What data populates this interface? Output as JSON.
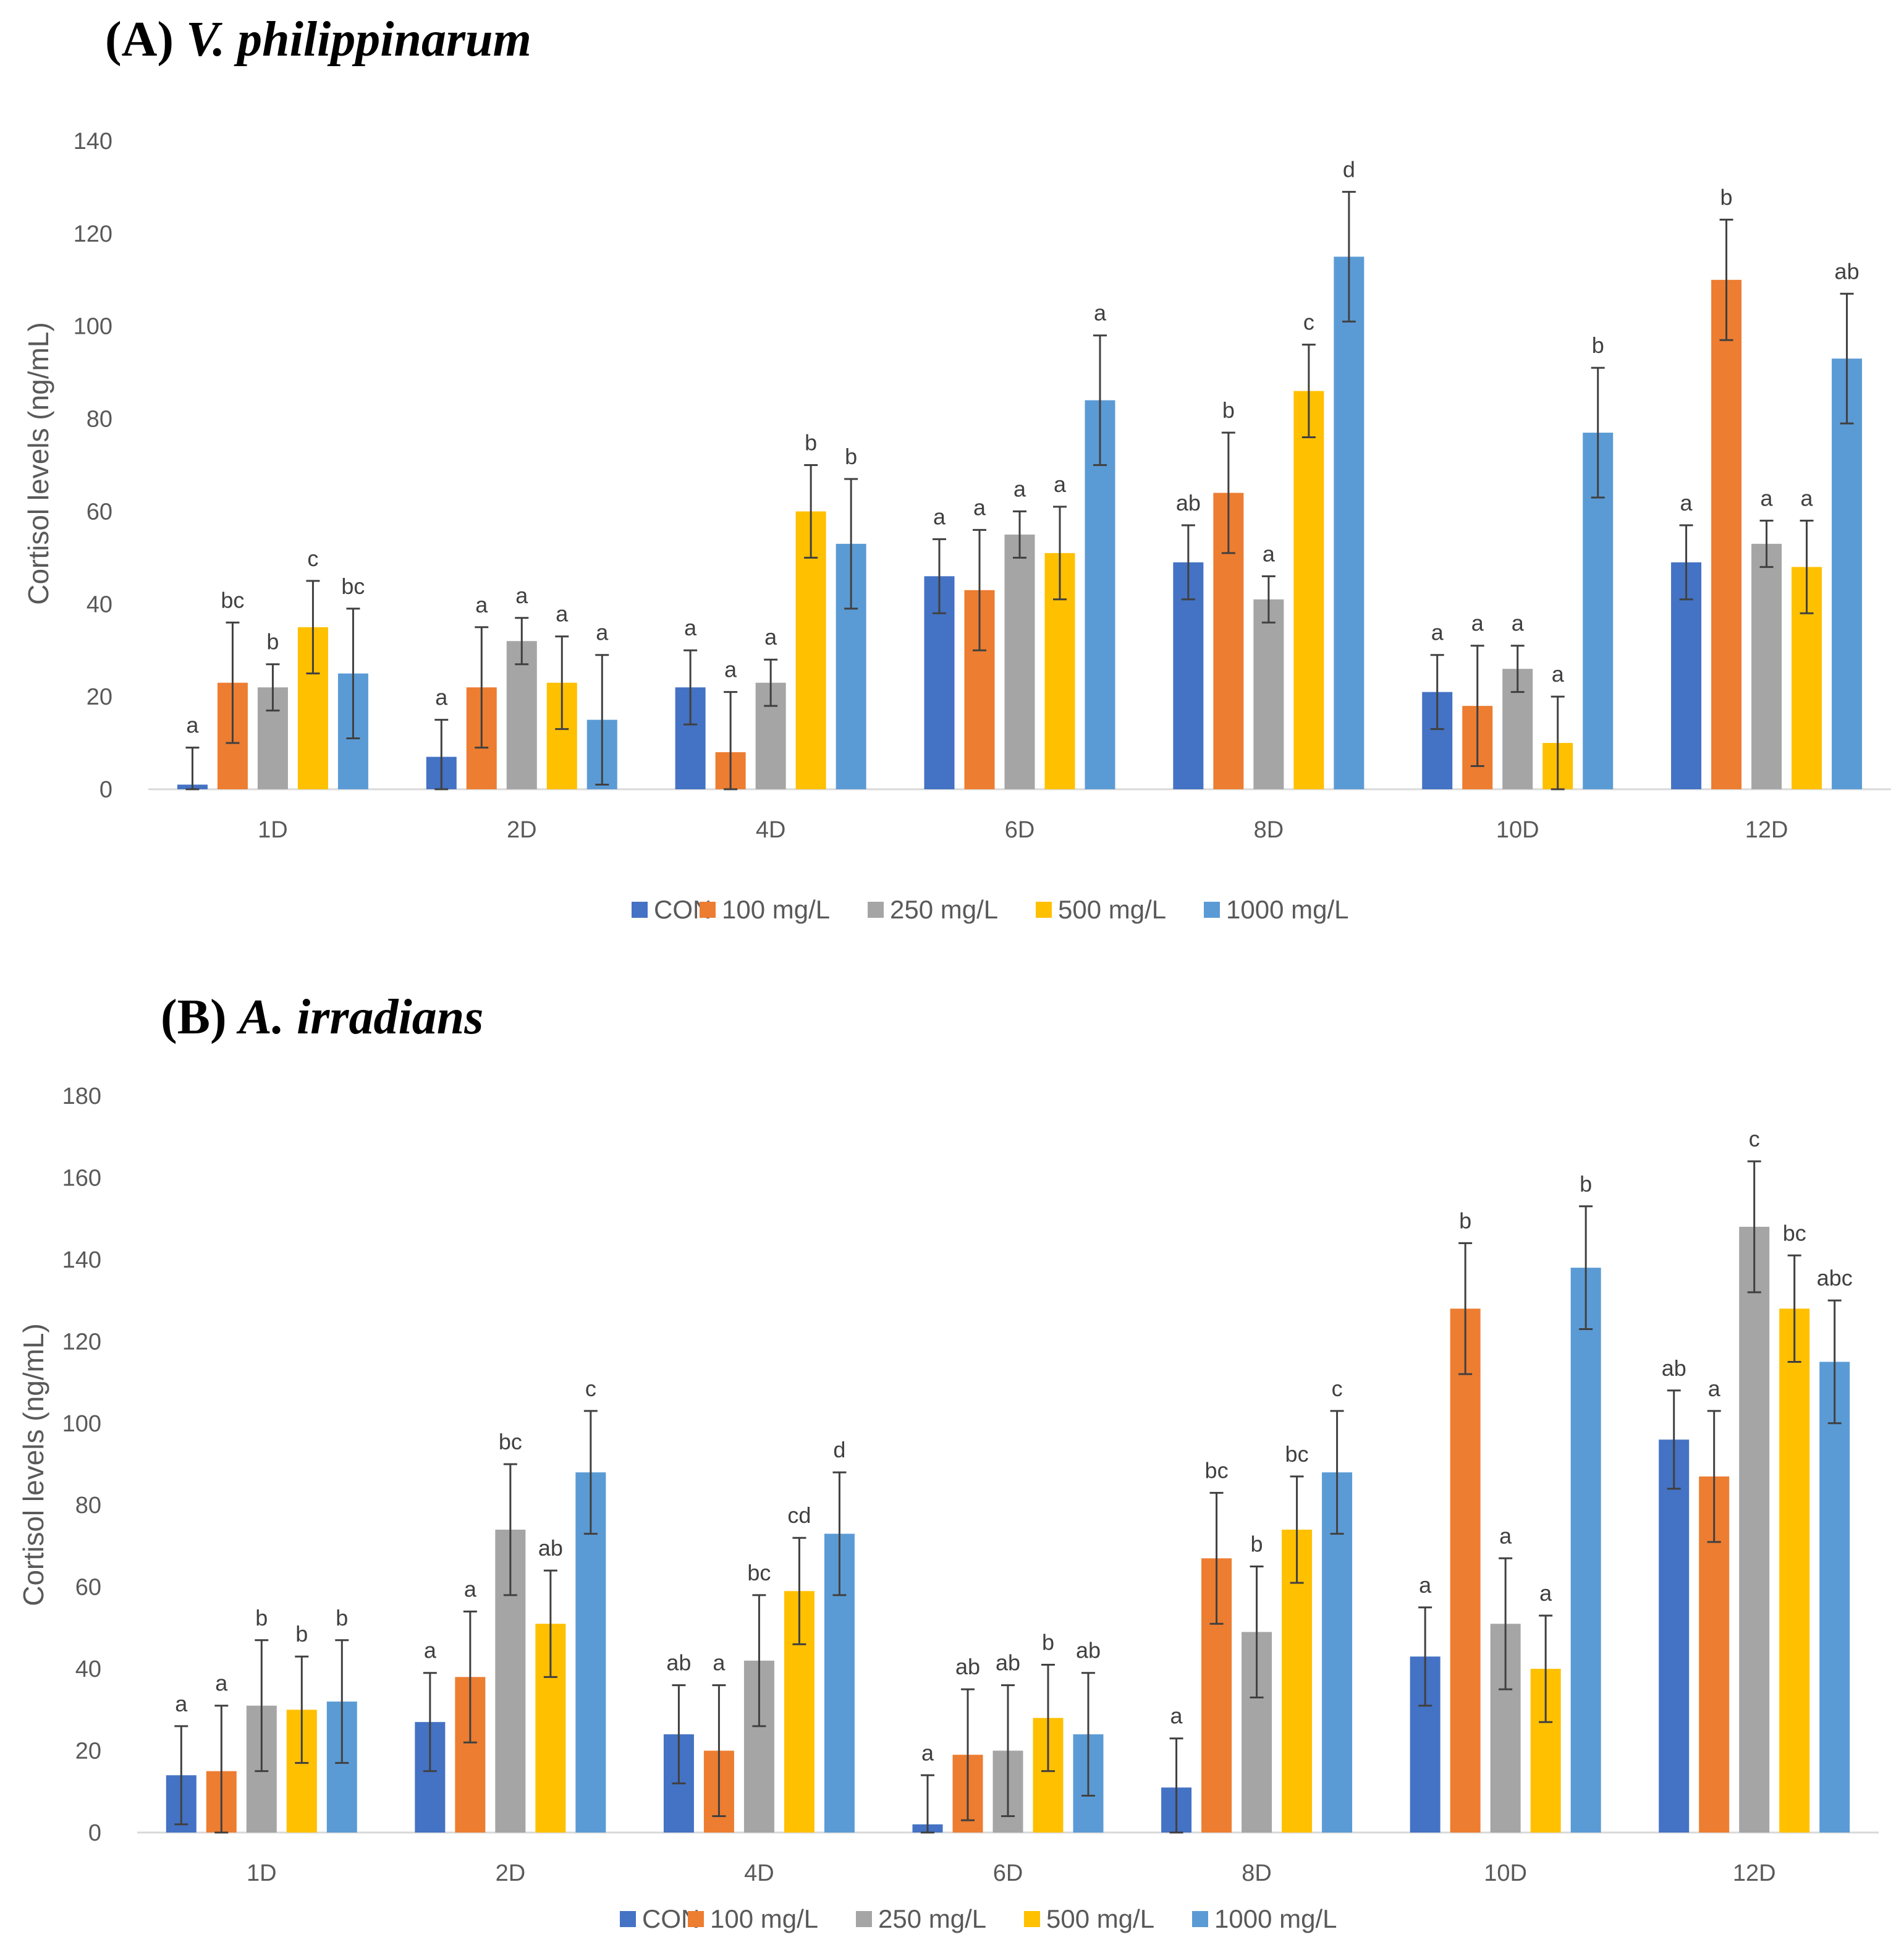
{
  "colors": {
    "CON": "#4472C4",
    "100 mg/L": "#ED7D31",
    "250 mg/L": "#A5A5A5",
    "500 mg/L": "#FFC000",
    "1000 mg/L": "#5B9BD5"
  },
  "chart_data": [
    {
      "type": "bar",
      "panel_label": "(A)",
      "title": "V. philippinarum",
      "xlabel": "",
      "ylabel": "Cortisol levels (ng/mL)",
      "ylim": [
        0,
        140
      ],
      "yticks": [
        0,
        20,
        40,
        60,
        80,
        100,
        120,
        140
      ],
      "categories": [
        "1D",
        "2D",
        "4D",
        "6D",
        "8D",
        "10D",
        "12D"
      ],
      "legend_position": "bottom",
      "series": [
        {
          "name": "CON",
          "values": [
            1,
            7,
            22,
            46,
            49,
            21,
            49
          ],
          "errors": [
            8,
            8,
            8,
            8,
            8,
            8,
            8
          ],
          "labels": [
            "a",
            "a",
            "a",
            "a",
            "ab",
            "a",
            "a"
          ]
        },
        {
          "name": "100 mg/L",
          "values": [
            23,
            22,
            8,
            43,
            64,
            18,
            110
          ],
          "errors": [
            13,
            13,
            13,
            13,
            13,
            13,
            13
          ],
          "labels": [
            "bc",
            "a",
            "a",
            "a",
            "b",
            "a",
            "b"
          ]
        },
        {
          "name": "250 mg/L",
          "values": [
            22,
            32,
            23,
            55,
            41,
            26,
            53
          ],
          "errors": [
            5,
            5,
            5,
            5,
            5,
            5,
            5
          ],
          "labels": [
            "b",
            "a",
            "a",
            "a",
            "a",
            "a",
            "a"
          ]
        },
        {
          "name": "500 mg/L",
          "values": [
            35,
            23,
            60,
            51,
            86,
            10,
            48
          ],
          "errors": [
            10,
            10,
            10,
            10,
            10,
            10,
            10
          ],
          "labels": [
            "c",
            "a",
            "b",
            "a",
            "c",
            "a",
            "a"
          ]
        },
        {
          "name": "1000 mg/L",
          "values": [
            25,
            15,
            53,
            84,
            115,
            77,
            93
          ],
          "errors": [
            14,
            14,
            14,
            14,
            14,
            14,
            14
          ],
          "labels": [
            "bc",
            "a",
            "b",
            "a",
            "d",
            "b",
            "ab"
          ]
        }
      ]
    },
    {
      "type": "bar",
      "panel_label": "(B)",
      "title": "A. irradians",
      "xlabel": "",
      "ylabel": "Cortisol levels (ng/mL)",
      "ylim": [
        0,
        180
      ],
      "yticks": [
        0,
        20,
        40,
        60,
        80,
        100,
        120,
        140,
        160,
        180
      ],
      "categories": [
        "1D",
        "2D",
        "4D",
        "6D",
        "8D",
        "10D",
        "12D"
      ],
      "legend_position": "bottom",
      "series": [
        {
          "name": "CON",
          "values": [
            14,
            27,
            24,
            2,
            11,
            43,
            96
          ],
          "errors": [
            12,
            12,
            12,
            12,
            12,
            12,
            12
          ],
          "labels": [
            "a",
            "a",
            "ab",
            "a",
            "a",
            "a",
            "ab"
          ]
        },
        {
          "name": "100 mg/L",
          "values": [
            15,
            38,
            20,
            19,
            67,
            128,
            87
          ],
          "errors": [
            16,
            16,
            16,
            16,
            16,
            16,
            16
          ],
          "labels": [
            "a",
            "a",
            "a",
            "ab",
            "bc",
            "b",
            "a"
          ]
        },
        {
          "name": "250 mg/L",
          "values": [
            31,
            74,
            42,
            20,
            49,
            51,
            148
          ],
          "errors": [
            16,
            16,
            16,
            16,
            16,
            16,
            16
          ],
          "labels": [
            "b",
            "bc",
            "bc",
            "ab",
            "b",
            "a",
            "c"
          ]
        },
        {
          "name": "500 mg/L",
          "values": [
            30,
            51,
            59,
            28,
            74,
            40,
            128
          ],
          "errors": [
            13,
            13,
            13,
            13,
            13,
            13,
            13
          ],
          "labels": [
            "b",
            "ab",
            "cd",
            "b",
            "bc",
            "a",
            "bc"
          ]
        },
        {
          "name": "1000 mg/L",
          "values": [
            32,
            88,
            73,
            24,
            88,
            138,
            115
          ],
          "errors": [
            15,
            15,
            15,
            15,
            15,
            15,
            15
          ],
          "labels": [
            "b",
            "c",
            "d",
            "ab",
            "c",
            "b",
            "abc"
          ]
        }
      ]
    }
  ]
}
